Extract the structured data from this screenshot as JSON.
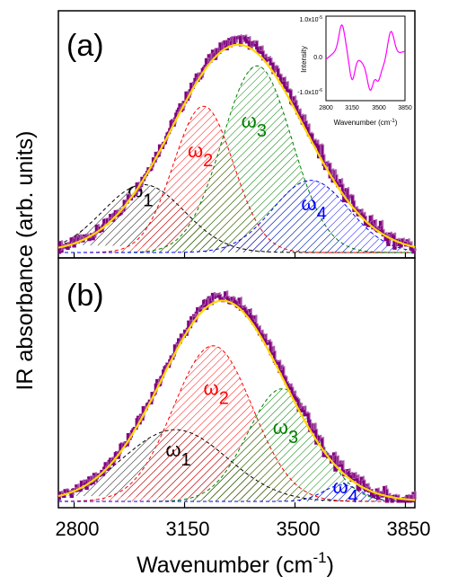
{
  "chart_data": {
    "xlabel": "Wavenumber (cm",
    "xlabel_sup": "-1",
    "xlabel_close": ")",
    "ylabel": "IR absorbance (arb. units)",
    "xlim": [
      2750,
      3880
    ],
    "xticks": [
      "2800",
      "3150",
      "3500",
      "3850"
    ],
    "panels": [
      {
        "tag": "(a)",
        "type": "line",
        "envelope": {
          "peak": 3320,
          "width": 210,
          "amp": 1.0
        },
        "components": [
          {
            "name": "ω",
            "sub": "1",
            "color": "#000000",
            "center": 3020,
            "width": 130,
            "amp": 0.32,
            "label_x": 3010,
            "label_y": 0.26
          },
          {
            "name": "ω",
            "sub": "2",
            "color": "#ff0000",
            "center": 3210,
            "width": 95,
            "amp": 0.69,
            "label_x": 3200,
            "label_y": 0.45
          },
          {
            "name": "ω",
            "sub": "3",
            "color": "#008000",
            "center": 3380,
            "width": 110,
            "amp": 0.88,
            "label_x": 3370,
            "label_y": 0.59
          },
          {
            "name": "ω",
            "sub": "4",
            "color": "#0000ff",
            "center": 3550,
            "width": 120,
            "amp": 0.34,
            "label_x": 3560,
            "label_y": 0.2
          }
        ]
      },
      {
        "tag": "(b)",
        "type": "line",
        "envelope": {
          "peak": 3270,
          "width": 195,
          "amp": 1.0
        },
        "components": [
          {
            "name": "ω",
            "sub": "1",
            "color": "#000000",
            "center": 3120,
            "width": 165,
            "amp": 0.35,
            "label_x": 3130,
            "label_y": 0.22
          },
          {
            "name": "ω",
            "sub": "2",
            "color": "#ff0000",
            "center": 3240,
            "width": 125,
            "amp": 0.76,
            "label_x": 3250,
            "label_y": 0.52
          },
          {
            "name": "ω",
            "sub": "3",
            "color": "#008000",
            "center": 3460,
            "width": 110,
            "amp": 0.55,
            "label_x": 3470,
            "label_y": 0.33
          },
          {
            "name": "ω",
            "sub": "4",
            "color": "#0000ff",
            "center": 3650,
            "width": 60,
            "amp": 0.08,
            "label_x": 3660,
            "label_y": 0.04
          }
        ]
      }
    ],
    "envelope_colors": {
      "data": "#800080",
      "fit": "#ffd700"
    },
    "inset": {
      "type": "line",
      "ylabel": "Intensity",
      "xlabel": "Wavenumber (cm",
      "xlabel_sup": "-1",
      "xlabel_close": ")",
      "yticks": [
        "1.0x10",
        "0.0",
        "-1.0x10"
      ],
      "ytick_sup": "-5",
      "ytick_sup_bottom": "-6",
      "xticks": [
        "2800",
        "3150",
        "3500",
        "3850"
      ],
      "color": "#ff00ff"
    }
  }
}
